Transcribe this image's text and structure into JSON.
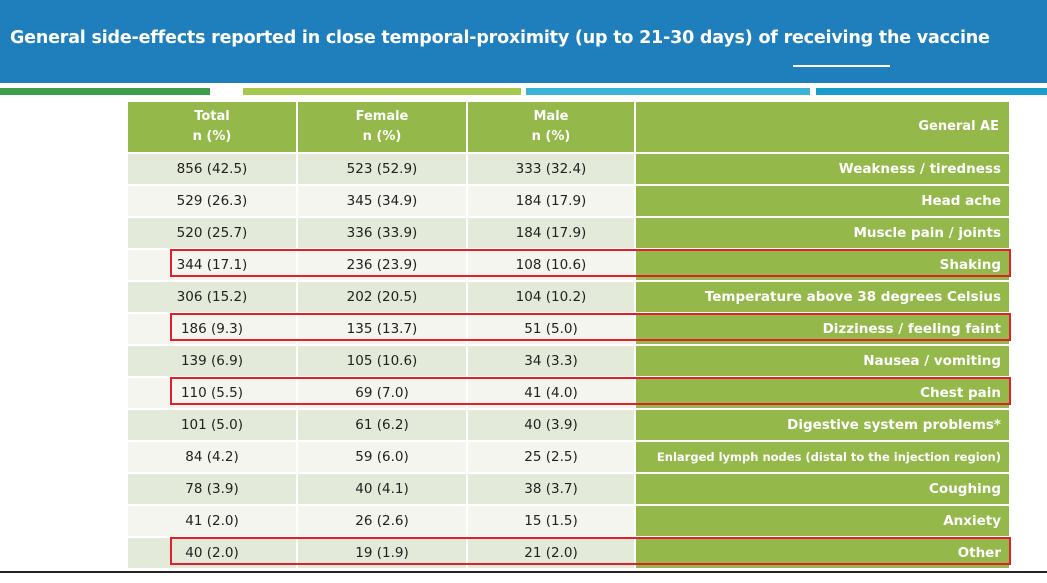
{
  "slide": {
    "title": "General side-effects reported in close temporal-proximity (up to 21-30 days) of receiving the vaccine"
  },
  "table": {
    "headers": [
      {
        "line1": "Total",
        "line2": "n (%)"
      },
      {
        "line1": "Female",
        "line2": "n (%)"
      },
      {
        "line1": "Male",
        "line2": "n (%)"
      },
      {
        "line1": "General AE",
        "line2": ""
      }
    ],
    "rows": [
      {
        "total": "856 (42.5)",
        "female": "523 (52.9)",
        "male": "333 (32.4)",
        "ae": "Weakness / tiredness",
        "highlighted": false
      },
      {
        "total": "529 (26.3)",
        "female": "345 (34.9)",
        "male": "184 (17.9)",
        "ae": "Head ache",
        "highlighted": false
      },
      {
        "total": "520 (25.7)",
        "female": "336 (33.9)",
        "male": "184 (17.9)",
        "ae": "Muscle pain / joints",
        "highlighted": false
      },
      {
        "total": "344 (17.1)",
        "female": "236 (23.9)",
        "male": "108 (10.6)",
        "ae": "Shaking",
        "highlighted": true
      },
      {
        "total": "306 (15.2)",
        "female": "202 (20.5)",
        "male": "104 (10.2)",
        "ae": "Temperature above 38 degrees Celsius",
        "highlighted": false
      },
      {
        "total": "186 (9.3)",
        "female": "135 (13.7)",
        "male": "51 (5.0)",
        "ae": "Dizziness / feeling faint",
        "highlighted": true
      },
      {
        "total": "139 (6.9)",
        "female": "105 (10.6)",
        "male": "34 (3.3)",
        "ae": "Nausea / vomiting",
        "highlighted": false
      },
      {
        "total": "110 (5.5)",
        "female": "69 (7.0)",
        "male": "41 (4.0)",
        "ae": "Chest pain",
        "highlighted": true
      },
      {
        "total": "101 (5.0)",
        "female": "61 (6.2)",
        "male": "40 (3.9)",
        "ae": "Digestive system problems*",
        "highlighted": false
      },
      {
        "total": "84 (4.2)",
        "female": "59 (6.0)",
        "male": "25 (2.5)",
        "ae": "Enlarged lymph nodes (distal to the injection region)",
        "highlighted": false
      },
      {
        "total": "78 (3.9)",
        "female": "40 (4.1)",
        "male": "38 (3.7)",
        "ae": "Coughing",
        "highlighted": false
      },
      {
        "total": "41 (2.0)",
        "female": "26 (2.6)",
        "male": "15 (1.5)",
        "ae": "Anxiety",
        "highlighted": false
      },
      {
        "total": "40 (2.0)",
        "female": "19 (1.9)",
        "male": "21 (2.0)",
        "ae": "Other",
        "highlighted": true
      }
    ]
  },
  "colors": {
    "banner": "#1f7fbc",
    "header_green": "#94b94a",
    "highlight_box": "#e0202a"
  }
}
